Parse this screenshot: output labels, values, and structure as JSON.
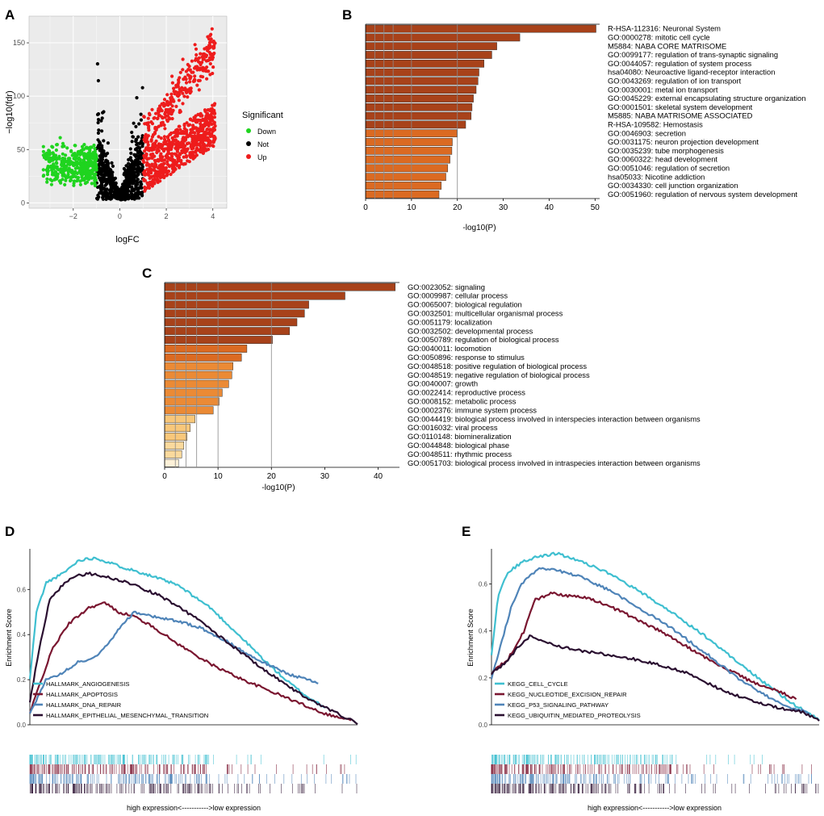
{
  "chart_data": [
    {
      "panel": "A",
      "type": "scatter",
      "xlabel": "logFC",
      "ylabel": "−log10(fdr)",
      "xlim": [
        -3.9,
        4.6
      ],
      "ylim": [
        -5,
        175
      ],
      "x_ticks": [
        -2,
        0,
        2,
        4
      ],
      "x_tick_labels": [
        "−2",
        "0",
        "2",
        "4"
      ],
      "y_ticks": [
        0,
        50,
        100,
        150
      ],
      "grid": true,
      "legend": {
        "title": "Significant",
        "position": "right",
        "entries": [
          {
            "label": "Down",
            "color": "#1fd41f"
          },
          {
            "label": "Not",
            "color": "#000000"
          },
          {
            "label": "Up",
            "color": "#ee1c1c"
          }
        ]
      },
      "groups": [
        {
          "name": "Down",
          "color": "#1fd41f",
          "x_range": [
            -3.4,
            -1.0
          ]
        },
        {
          "name": "Not",
          "color": "#000000",
          "x_range": [
            -1.0,
            1.0
          ]
        },
        {
          "name": "Up",
          "color": "#ee1c1c",
          "x_range": [
            1.0,
            4.2
          ]
        }
      ]
    },
    {
      "panel": "B",
      "type": "bar",
      "orientation": "horizontal",
      "xlabel": "-log10(P)",
      "xlim": [
        0,
        51
      ],
      "x_ticks": [
        0,
        10,
        20,
        30,
        40,
        50
      ],
      "gridlines": [
        2,
        4,
        6,
        10,
        20
      ],
      "categories": [
        "R-HSA-112316: Neuronal System",
        "GO:0000278: mitotic cell cycle",
        "M5884: NABA CORE MATRISOME",
        "GO:0099177: regulation of trans-synaptic signaling",
        "GO:0044057: regulation of system process",
        "hsa04080: Neuroactive ligand-receptor interaction",
        "GO:0043269: regulation of ion transport",
        "GO:0030001: metal ion transport",
        "GO:0045229: external encapsulating structure organization",
        "GO:0001501: skeletal system development",
        "M5885: NABA MATRISOME ASSOCIATED",
        "R-HSA-109582: Hemostasis",
        "GO:0046903: secretion",
        "GO:0031175: neuron projection development",
        "GO:0035239: tube morphogenesis",
        "GO:0060322: head development",
        "GO:0051046: regulation of secretion",
        "hsa05033: Nicotine addiction",
        "GO:0034330: cell junction organization",
        "GO:0051960: regulation of nervous system development"
      ],
      "values": [
        50.2,
        33.6,
        28.6,
        27.5,
        25.8,
        24.7,
        24.5,
        24.1,
        23.5,
        23.2,
        23.0,
        21.8,
        19.9,
        18.9,
        18.8,
        18.4,
        17.9,
        17.5,
        16.5,
        16.0
      ],
      "colors": [
        "#a8421a",
        "#a8421a",
        "#a8421a",
        "#a8421a",
        "#a8421a",
        "#a8421a",
        "#a8421a",
        "#a8421a",
        "#a8421a",
        "#a8421a",
        "#a8421a",
        "#a8421a",
        "#db6a22",
        "#db6a22",
        "#db6a22",
        "#db6a22",
        "#db6a22",
        "#db6a22",
        "#db6a22",
        "#db6a22"
      ]
    },
    {
      "panel": "C",
      "type": "bar",
      "orientation": "horizontal",
      "xlabel": "-log10(P)",
      "xlim": [
        0,
        44
      ],
      "x_ticks": [
        0,
        10,
        20,
        30,
        40
      ],
      "gridlines": [
        2,
        4,
        6,
        10,
        20
      ],
      "categories": [
        "GO:0023052: signaling",
        "GO:0009987: cellular process",
        "GO:0065007: biological regulation",
        "GO:0032501: multicellular organismal process",
        "GO:0051179: localization",
        "GO:0032502: developmental process",
        "GO:0050789: regulation of biological process",
        "GO:0040011: locomotion",
        "GO:0050896: response to stimulus",
        "GO:0048518: positive regulation of biological process",
        "GO:0048519: negative regulation of biological process",
        "GO:0040007: growth",
        "GO:0022414: reproductive process",
        "GO:0008152: metabolic process",
        "GO:0002376: immune system process",
        "GO:0044419: biological process involved in interspecies interaction between organisms",
        "GO:0016032: viral process",
        "GO:0110148: biomineralization",
        "GO:0044848: biological phase",
        "GO:0048511: rhythmic process",
        "GO:0051703: biological process involved in intraspecies interaction between organisms"
      ],
      "values": [
        43.2,
        33.8,
        27.0,
        26.2,
        24.8,
        23.4,
        20.2,
        15.4,
        14.4,
        12.8,
        12.6,
        12.0,
        10.8,
        10.2,
        9.1,
        5.7,
        4.8,
        4.2,
        3.6,
        3.2,
        2.6
      ],
      "colors": [
        "#a8421a",
        "#a8421a",
        "#a8421a",
        "#a8421a",
        "#a8421a",
        "#a8421a",
        "#a8421a",
        "#db6a22",
        "#db6a22",
        "#eb8a35",
        "#eb8a35",
        "#eb8a35",
        "#eb8a35",
        "#eb8a35",
        "#eb8a35",
        "#f8c77a",
        "#f8c77a",
        "#f8c77a",
        "#fad99c",
        "#fad99c",
        "#fdf1d8"
      ]
    },
    {
      "panel": "D",
      "type": "line",
      "ylabel": "Enrichment Score",
      "ylim": [
        0,
        0.78
      ],
      "y_ticks": [
        0.0,
        0.2,
        0.4,
        0.6
      ],
      "y_tick_labels": [
        "0.0",
        "0.2",
        "0.4",
        "0.6"
      ],
      "x_caption": "high expression<----------->low expression",
      "legend_position": "bottom-left",
      "series": [
        {
          "name": "HALLMARK_ANGIOGENESIS",
          "color": "#3fbfd0",
          "x": [
            0,
            0.02,
            0.05,
            0.1,
            0.15,
            0.2,
            0.28,
            0.35,
            0.45,
            0.55,
            0.65,
            0.72,
            0.78,
            0.85,
            0.9
          ],
          "y": [
            0.2,
            0.5,
            0.63,
            0.67,
            0.73,
            0.74,
            0.7,
            0.67,
            0.62,
            0.52,
            0.38,
            0.28,
            0.2,
            0.12,
            0.08
          ]
        },
        {
          "name": "HALLMARK_APOPTOSIS",
          "color": "#7a1630",
          "x": [
            0,
            0.03,
            0.07,
            0.12,
            0.18,
            0.23,
            0.27,
            0.32,
            0.38,
            0.45,
            0.55,
            0.65,
            0.75,
            0.85,
            0.9,
            0.95,
            0.98
          ],
          "y": [
            0.05,
            0.18,
            0.34,
            0.45,
            0.52,
            0.54,
            0.5,
            0.48,
            0.43,
            0.36,
            0.27,
            0.2,
            0.14,
            0.08,
            0.05,
            0.03,
            0.02
          ]
        },
        {
          "name": "HALLMARK_DNA_REPAIR",
          "color": "#4f84b8",
          "x": [
            0,
            0.05,
            0.1,
            0.15,
            0.2,
            0.25,
            0.28,
            0.32,
            0.38,
            0.45,
            0.52,
            0.6,
            0.68,
            0.75,
            0.8,
            0.85,
            0.88
          ],
          "y": [
            0.05,
            0.2,
            0.23,
            0.28,
            0.3,
            0.38,
            0.44,
            0.5,
            0.48,
            0.46,
            0.43,
            0.37,
            0.3,
            0.25,
            0.22,
            0.2,
            0.18
          ]
        },
        {
          "name": "HALLMARK_EPITHELIAL_MESENCHYMAL_TRANSITION",
          "color": "#2a0f30",
          "x": [
            0,
            0.03,
            0.06,
            0.1,
            0.14,
            0.18,
            0.22,
            0.3,
            0.4,
            0.5,
            0.6,
            0.7,
            0.8,
            0.88,
            0.94,
            0.98,
            1.0
          ],
          "y": [
            0.1,
            0.35,
            0.55,
            0.62,
            0.66,
            0.67,
            0.66,
            0.63,
            0.57,
            0.48,
            0.37,
            0.26,
            0.16,
            0.09,
            0.05,
            0.02,
            0.0
          ]
        }
      ]
    },
    {
      "panel": "E",
      "type": "line",
      "ylabel": "Enrichment Score",
      "ylim": [
        0,
        0.75
      ],
      "y_ticks": [
        0.0,
        0.2,
        0.4,
        0.6
      ],
      "y_tick_labels": [
        "0.0",
        "0.2",
        "0.4",
        "0.6"
      ],
      "x_caption": "high expression<----------->low expression",
      "legend_position": "bottom-left",
      "series": [
        {
          "name": "KEGG_CELL_CYCLE",
          "color": "#3fbfd0",
          "x": [
            0,
            0.02,
            0.05,
            0.1,
            0.15,
            0.2,
            0.27,
            0.35,
            0.45,
            0.55,
            0.65,
            0.75,
            0.85,
            0.92,
            1.0
          ],
          "y": [
            0.3,
            0.55,
            0.65,
            0.7,
            0.72,
            0.73,
            0.7,
            0.65,
            0.57,
            0.48,
            0.38,
            0.27,
            0.16,
            0.09,
            0.02
          ]
        },
        {
          "name": "KEGG_NUCLEOTIDE_EXCISION_REPAIR",
          "color": "#7a1630",
          "x": [
            0,
            0.05,
            0.1,
            0.13,
            0.18,
            0.23,
            0.3,
            0.35,
            0.4,
            0.5,
            0.6,
            0.7,
            0.8,
            0.88,
            0.93
          ],
          "y": [
            0.22,
            0.28,
            0.4,
            0.53,
            0.56,
            0.55,
            0.54,
            0.51,
            0.48,
            0.41,
            0.33,
            0.25,
            0.18,
            0.14,
            0.11
          ]
        },
        {
          "name": "KEGG_P53_SIGNALING_PATHWAY",
          "color": "#4f84b8",
          "x": [
            0,
            0.03,
            0.06,
            0.09,
            0.12,
            0.15,
            0.2,
            0.27,
            0.35,
            0.45,
            0.55,
            0.65,
            0.75,
            0.83,
            0.9,
            0.97
          ],
          "y": [
            0.2,
            0.35,
            0.5,
            0.6,
            0.64,
            0.67,
            0.66,
            0.63,
            0.58,
            0.5,
            0.41,
            0.31,
            0.2,
            0.13,
            0.08,
            0.05
          ]
        },
        {
          "name": "KEGG_UBIQUITIN_MEDIATED_PROTEOLYSIS",
          "color": "#2a0f30",
          "x": [
            0,
            0.04,
            0.08,
            0.12,
            0.17,
            0.22,
            0.3,
            0.4,
            0.5,
            0.6,
            0.7,
            0.8,
            0.88,
            0.94,
            0.97,
            1.0
          ],
          "y": [
            0.22,
            0.26,
            0.33,
            0.38,
            0.35,
            0.33,
            0.31,
            0.29,
            0.26,
            0.22,
            0.15,
            0.1,
            0.07,
            0.06,
            0.04,
            0.02
          ]
        }
      ]
    }
  ]
}
